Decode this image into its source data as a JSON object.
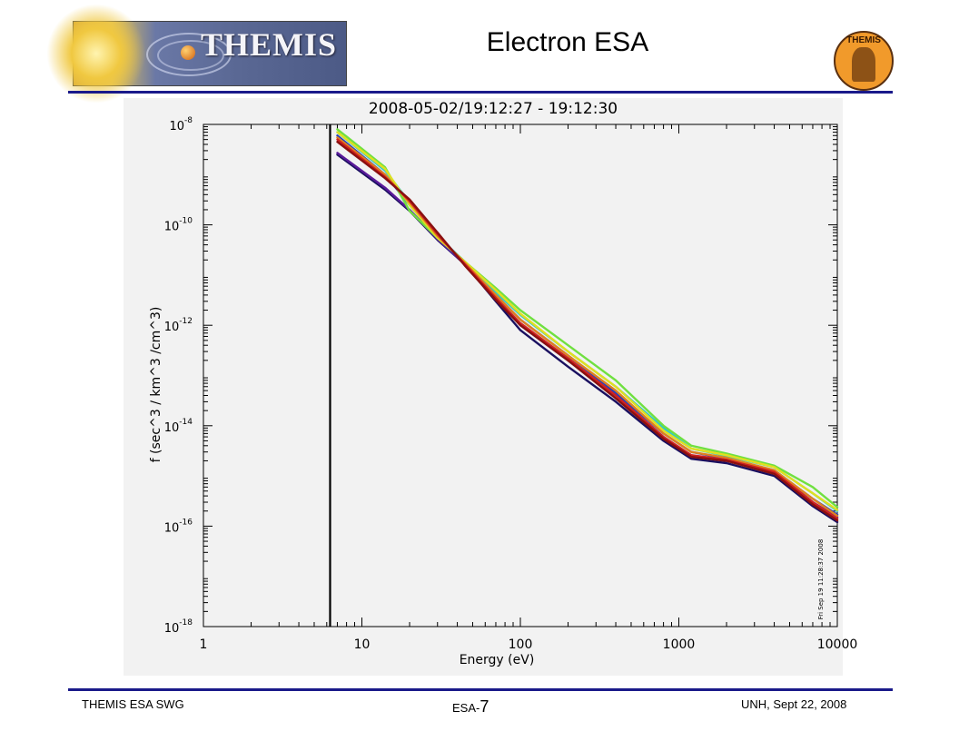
{
  "header": {
    "logo_text": "THEMIS",
    "title": "Electron ESA",
    "badge_text": "THEMIS"
  },
  "footer": {
    "left": "THEMIS ESA SWG",
    "page_label": "ESA-",
    "page_number": "7",
    "right": "UNH,   Sept 22, 2008"
  },
  "colors": {
    "rule": "#1a1a8a",
    "plot_background": "#f2f2f2",
    "marker_line": "#000000"
  },
  "chart_data": {
    "type": "line",
    "title": "2008-05-02/19:12:27 - 19:12:30",
    "xlabel": "Energy  (eV)",
    "ylabel": "f  (sec^3 / km^3 /cm^3)",
    "x_scale": "log",
    "y_scale": "log",
    "xlim": [
      1,
      10000
    ],
    "ylim": [
      1e-18,
      1e-08
    ],
    "x_ticks": [
      {
        "value": 1,
        "label": "1"
      },
      {
        "value": 10,
        "label": "10"
      },
      {
        "value": 100,
        "label": "100"
      },
      {
        "value": 1000,
        "label": "1000"
      },
      {
        "value": 10000,
        "label": "10000"
      }
    ],
    "y_ticks": [
      {
        "value": 1e-18,
        "label": "10",
        "exp": "-18"
      },
      {
        "value": 1e-16,
        "label": "10",
        "exp": "-16"
      },
      {
        "value": 1e-14,
        "label": "10",
        "exp": "-14"
      },
      {
        "value": 1e-12,
        "label": "10",
        "exp": "-12"
      },
      {
        "value": 1e-10,
        "label": "10",
        "exp": "-10"
      },
      {
        "value": 1e-08,
        "label": "10",
        "exp": "-8"
      }
    ],
    "vertical_line": {
      "x": 6.3
    },
    "side_annotation": "Fri Sep 19 11:28:37 2008",
    "grid": false,
    "series": [
      {
        "color": "#1a1060",
        "x": [
          7,
          14,
          20,
          30,
          45,
          70,
          100,
          200,
          400,
          800,
          1200,
          2000,
          4000,
          7000,
          10000
        ],
        "y": [
          2.5e-09,
          5e-10,
          1.9e-10,
          5e-11,
          1.6e-11,
          3e-12,
          8e-13,
          1.5e-13,
          3e-14,
          5e-15,
          2.2e-15,
          1.8e-15,
          1e-15,
          2.5e-16,
          1.2e-16
        ]
      },
      {
        "color": "#5a1a9a",
        "x": [
          7,
          14,
          20,
          30,
          45,
          70,
          100,
          200,
          400,
          800,
          1200,
          2000,
          4000,
          7000,
          10000
        ],
        "y": [
          2.7e-09,
          5.5e-10,
          2e-10,
          5.2e-11,
          1.6e-11,
          3.5e-12,
          1e-12,
          2e-13,
          4e-14,
          6e-15,
          2.5e-15,
          2e-15,
          1.2e-15,
          3e-16,
          1.5e-16
        ]
      },
      {
        "color": "#2040c0",
        "x": [
          7,
          14,
          20,
          30,
          45,
          70,
          100,
          200,
          400,
          800,
          1200,
          2000,
          4000,
          7000,
          10000
        ],
        "y": [
          6e-09,
          1e-09,
          2.5e-10,
          5.5e-11,
          1.7e-11,
          4e-12,
          1.3e-12,
          2.5e-13,
          4.5e-14,
          7e-15,
          3e-15,
          2.2e-15,
          1.3e-15,
          3.5e-16,
          1.7e-16
        ]
      },
      {
        "color": "#30c8c8",
        "x": [
          7,
          14,
          20,
          30,
          45,
          70,
          100,
          200,
          400,
          800,
          1200,
          2000,
          4000,
          7000,
          10000
        ],
        "y": [
          7e-09,
          1.2e-09,
          2.8e-10,
          6e-11,
          1.8e-11,
          4.5e-12,
          1.6e-12,
          3e-13,
          6e-14,
          9e-15,
          3.5e-15,
          2.5e-15,
          1.5e-15,
          4.5e-16,
          2e-16
        ]
      },
      {
        "color": "#70e040",
        "x": [
          7,
          14,
          20,
          30,
          45,
          70,
          100,
          200,
          400,
          800,
          1200,
          2000,
          4000,
          7000,
          10000
        ],
        "y": [
          8e-09,
          1.4e-09,
          1.9e-10,
          5.5e-11,
          1.8e-11,
          5.5e-12,
          2e-12,
          4e-13,
          8e-14,
          1e-14,
          4e-15,
          2.8e-15,
          1.6e-15,
          6e-16,
          2.4e-16
        ]
      },
      {
        "color": "#e0e020",
        "x": [
          7,
          14,
          20,
          30,
          45,
          70,
          100,
          200,
          400,
          800,
          1200,
          2000,
          4000,
          7000,
          10000
        ],
        "y": [
          7e-09,
          1.3e-09,
          2.5e-10,
          5.5e-11,
          1.8e-11,
          5e-12,
          1.7e-12,
          3e-13,
          6e-14,
          8e-15,
          3.5e-15,
          2.6e-15,
          1.5e-15,
          4.5e-16,
          2.1e-16
        ]
      },
      {
        "color": "#e08020",
        "x": [
          7,
          14,
          20,
          30,
          45,
          70,
          100,
          200,
          400,
          800,
          1200,
          2000,
          4000,
          7000,
          10000
        ],
        "y": [
          5.5e-09,
          1e-09,
          2.8e-10,
          6e-11,
          1.7e-11,
          4e-12,
          1.3e-12,
          2.5e-13,
          5e-14,
          7e-15,
          3e-15,
          2.3e-15,
          1.3e-15,
          3.5e-16,
          1.6e-16
        ]
      },
      {
        "color": "#d02020",
        "x": [
          7,
          14,
          20,
          30,
          45,
          70,
          100,
          200,
          400,
          800,
          1200,
          2000,
          4000,
          7000,
          10000
        ],
        "y": [
          5e-09,
          9e-10,
          3e-10,
          6.5e-11,
          1.6e-11,
          3.5e-12,
          1.1e-12,
          2.2e-13,
          4e-14,
          6e-15,
          2.6e-15,
          2.1e-15,
          1.2e-15,
          3e-16,
          1.4e-16
        ]
      },
      {
        "color": "#8a1010",
        "x": [
          7,
          14,
          20,
          30,
          45,
          70,
          100,
          200,
          400,
          800,
          1200,
          2000,
          4000,
          7000,
          10000
        ],
        "y": [
          4.5e-09,
          8.5e-10,
          3.2e-10,
          7e-11,
          1.5e-11,
          3.2e-12,
          1e-12,
          2e-13,
          3.5e-14,
          5.5e-15,
          2.4e-15,
          2e-15,
          1.1e-15,
          2.7e-16,
          1.3e-16
        ]
      }
    ]
  }
}
